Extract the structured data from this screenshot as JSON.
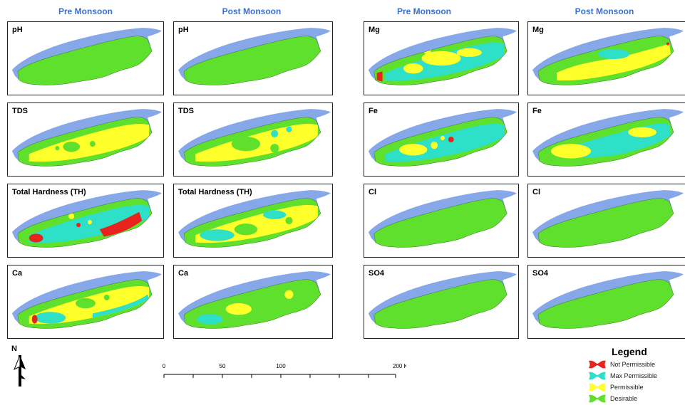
{
  "column_headers": [
    "Pre Monsoon",
    "Post Monsoon",
    "Pre Monsoon",
    "Post Monsoon"
  ],
  "panels": [
    {
      "label": "pH"
    },
    {
      "label": "pH"
    },
    {
      "label": "Mg"
    },
    {
      "label": "Mg"
    },
    {
      "label": "TDS"
    },
    {
      "label": "TDS"
    },
    {
      "label": "Fe"
    },
    {
      "label": "Fe"
    },
    {
      "label": "Total Hardness (TH)"
    },
    {
      "label": "Total Hardness (TH)"
    },
    {
      "label": "Cl"
    },
    {
      "label": "Cl"
    },
    {
      "label": "Ca"
    },
    {
      "label": "Ca"
    },
    {
      "label": "SO4"
    },
    {
      "label": "SO4"
    }
  ],
  "north_label": "N",
  "scale": {
    "ticks": [
      "0",
      "50",
      "100",
      "200 Kilometers"
    ]
  },
  "legend": {
    "title": "Legend",
    "items": [
      {
        "label": "Not Permissible",
        "color": "#e8231e"
      },
      {
        "label": "Max Permissible",
        "color": "#2ee0c8"
      },
      {
        "label": "Permissible",
        "color": "#ffff2a"
      },
      {
        "label": "Desirable",
        "color": "#5ee02c"
      }
    ]
  },
  "colors": {
    "water": "#86a8e8",
    "desirable": "#5ee02c",
    "permissible": "#ffff2a",
    "max_permissible": "#2ee0c8",
    "not_permissible": "#e8231e",
    "header_blue": "#3b6fd1"
  }
}
